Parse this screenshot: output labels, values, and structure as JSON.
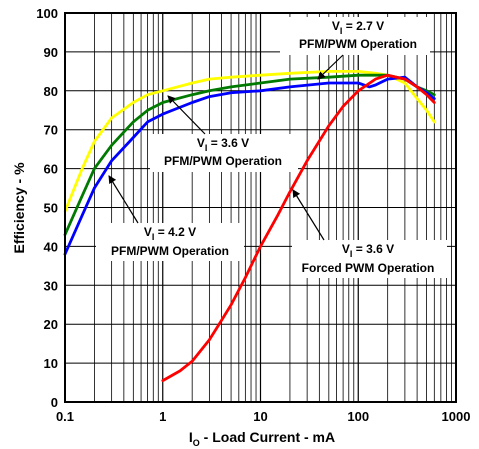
{
  "chart_data": {
    "type": "line",
    "title": "",
    "xlabel": {
      "main": "I",
      "sub": "O",
      "rest": " - Load Current - mA"
    },
    "ylabel": "Efficiency - %",
    "x_scale": "log",
    "xlim": [
      0.1,
      1000
    ],
    "ylim": [
      0,
      100
    ],
    "x_ticks": [
      "0.1",
      "1",
      "10",
      "100",
      "1000"
    ],
    "y_ticks": [
      "0",
      "10",
      "20",
      "30",
      "40",
      "50",
      "60",
      "70",
      "80",
      "90",
      "100"
    ],
    "grid": true,
    "series": [
      {
        "color": "#ffff00",
        "points": [
          [
            0.1,
            49
          ],
          [
            0.15,
            60
          ],
          [
            0.2,
            67
          ],
          [
            0.3,
            73
          ],
          [
            0.5,
            77
          ],
          [
            0.7,
            79
          ],
          [
            1,
            80
          ],
          [
            2,
            82
          ],
          [
            3,
            83
          ],
          [
            5,
            83.5
          ],
          [
            10,
            84
          ],
          [
            20,
            84.5
          ],
          [
            50,
            85
          ],
          [
            100,
            85
          ],
          [
            150,
            84.5
          ],
          [
            200,
            84
          ],
          [
            300,
            82
          ],
          [
            400,
            78
          ],
          [
            500,
            75
          ],
          [
            600,
            72
          ]
        ]
      },
      {
        "color": "#007a00",
        "points": [
          [
            0.1,
            43
          ],
          [
            0.15,
            53
          ],
          [
            0.2,
            60
          ],
          [
            0.3,
            66
          ],
          [
            0.5,
            72
          ],
          [
            0.7,
            75
          ],
          [
            1,
            77
          ],
          [
            2,
            79
          ],
          [
            3,
            80
          ],
          [
            5,
            81
          ],
          [
            10,
            82
          ],
          [
            20,
            83
          ],
          [
            50,
            83.5
          ],
          [
            100,
            84
          ],
          [
            150,
            84
          ],
          [
            200,
            84
          ],
          [
            300,
            83
          ],
          [
            400,
            81
          ],
          [
            500,
            80
          ],
          [
            600,
            79
          ]
        ]
      },
      {
        "color": "#0000ff",
        "points": [
          [
            0.1,
            38
          ],
          [
            0.15,
            48
          ],
          [
            0.2,
            55
          ],
          [
            0.3,
            62
          ],
          [
            0.5,
            68
          ],
          [
            0.7,
            72
          ],
          [
            1,
            74
          ],
          [
            2,
            77
          ],
          [
            3,
            78.5
          ],
          [
            5,
            79.5
          ],
          [
            10,
            80
          ],
          [
            20,
            81
          ],
          [
            50,
            82
          ],
          [
            100,
            82
          ],
          [
            130,
            81
          ],
          [
            150,
            81.5
          ],
          [
            200,
            83
          ],
          [
            300,
            83.5
          ],
          [
            400,
            81
          ],
          [
            500,
            79.5
          ],
          [
            600,
            78
          ]
        ]
      },
      {
        "color": "#ff0000",
        "points": [
          [
            1,
            5.5
          ],
          [
            1.5,
            8
          ],
          [
            2,
            10.5
          ],
          [
            3,
            16
          ],
          [
            4,
            21
          ],
          [
            5,
            25
          ],
          [
            7,
            32
          ],
          [
            10,
            40
          ],
          [
            15,
            48
          ],
          [
            20,
            54
          ],
          [
            30,
            62
          ],
          [
            50,
            71
          ],
          [
            70,
            76
          ],
          [
            100,
            80
          ],
          [
            150,
            83
          ],
          [
            200,
            84
          ],
          [
            300,
            83
          ],
          [
            400,
            81
          ],
          [
            500,
            79
          ],
          [
            600,
            77
          ]
        ]
      }
    ],
    "annotations": [
      {
        "v": "V",
        "vsub": "I",
        "value": " = 2.7 V",
        "mode": "PFM/PWM Operation"
      },
      {
        "v": "V",
        "vsub": "I",
        "value": " = 3.6 V",
        "mode": "PFM/PWM Operation"
      },
      {
        "v": "V",
        "vsub": "I",
        "value": " = 4.2 V",
        "mode": "PFM/PWM Operation"
      },
      {
        "v": "V",
        "vsub": "I",
        "value": " = 3.6 V",
        "mode": "Forced PWM Operation"
      }
    ]
  }
}
